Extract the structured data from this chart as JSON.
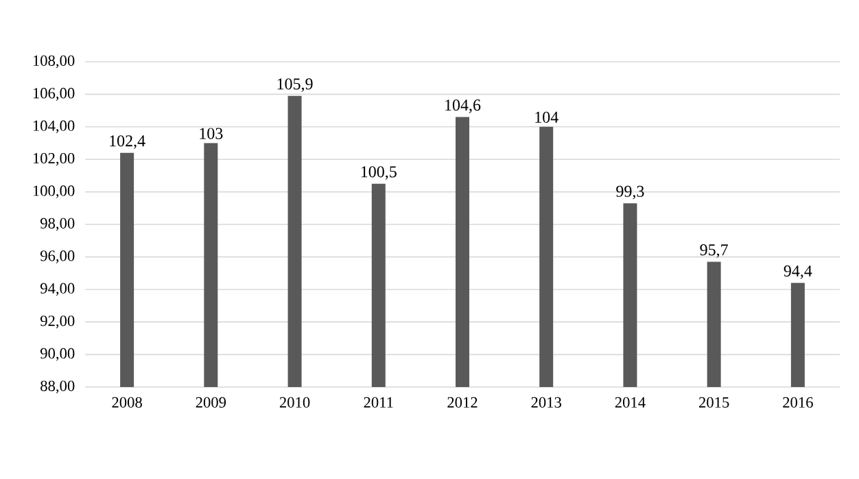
{
  "chart_data": {
    "type": "bar",
    "categories": [
      "2008",
      "2009",
      "2010",
      "2011",
      "2012",
      "2013",
      "2014",
      "2015",
      "2016"
    ],
    "values": [
      102.4,
      103,
      105.9,
      100.5,
      104.6,
      104,
      99.3,
      95.7,
      94.4
    ],
    "value_labels": [
      "102,4",
      "103",
      "105,9",
      "100,5",
      "104,6",
      "104",
      "99,3",
      "95,7",
      "94,4"
    ],
    "color": "#595959",
    "ylim": [
      88,
      108
    ],
    "yticks": [
      {
        "value": 88,
        "label": "88,00"
      },
      {
        "value": 90,
        "label": "90,00"
      },
      {
        "value": 92,
        "label": "92,00"
      },
      {
        "value": 94,
        "label": "94,00"
      },
      {
        "value": 96,
        "label": "96,00"
      },
      {
        "value": 98,
        "label": "98,00"
      },
      {
        "value": 100,
        "label": "100,00"
      },
      {
        "value": 102,
        "label": "102,00"
      },
      {
        "value": 104,
        "label": "104,00"
      },
      {
        "value": 106,
        "label": "106,00"
      },
      {
        "value": 108,
        "label": "108,00"
      }
    ],
    "grid": "y"
  }
}
